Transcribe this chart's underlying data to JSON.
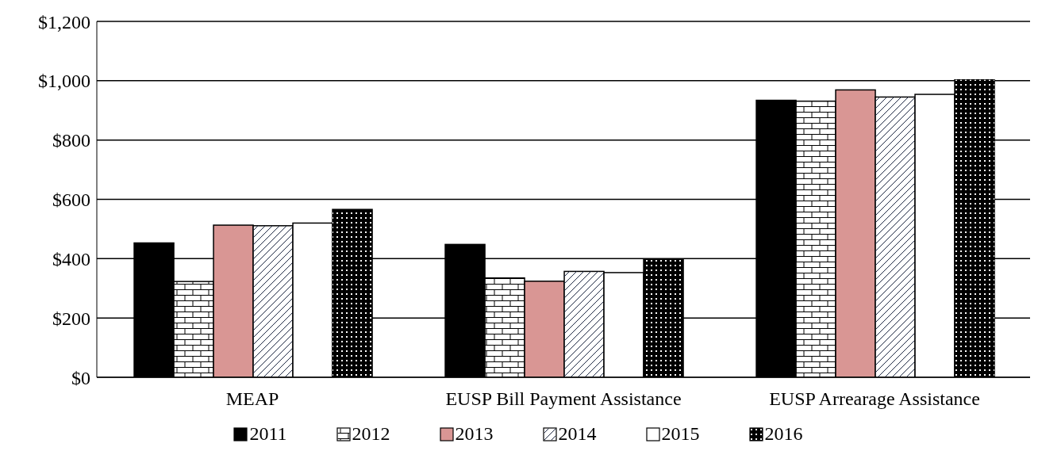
{
  "chart_data": {
    "type": "bar",
    "categories": [
      "MEAP",
      "EUSP Bill Payment Assistance",
      "EUSP Arrearage Assistance"
    ],
    "series": [
      {
        "name": "2011",
        "color": "#000000",
        "values": [
          453,
          448,
          934
        ]
      },
      {
        "name": "2012",
        "color": "#ffffff",
        "values": [
          323,
          335,
          931
        ]
      },
      {
        "name": "2013",
        "color": "#d99694",
        "values": [
          513,
          324,
          969
        ]
      },
      {
        "name": "2014",
        "color": "#ffffff",
        "values": [
          511,
          357,
          945
        ]
      },
      {
        "name": "2015",
        "color": "#ffffff",
        "values": [
          520,
          353,
          954
        ]
      },
      {
        "name": "2016",
        "color": "#000000",
        "values": [
          566,
          397,
          1003
        ]
      }
    ],
    "ylim": [
      0,
      1200
    ],
    "yticks": [
      {
        "value": 0,
        "label": "$0"
      },
      {
        "value": 200,
        "label": "$200"
      },
      {
        "value": 400,
        "label": "$400"
      },
      {
        "value": 600,
        "label": "$600"
      },
      {
        "value": 800,
        "label": "$800"
      },
      {
        "value": 1000,
        "label": "$1,000"
      },
      {
        "value": 1200,
        "label": "$1,200"
      }
    ],
    "grid": "y",
    "legend": "bottom"
  }
}
